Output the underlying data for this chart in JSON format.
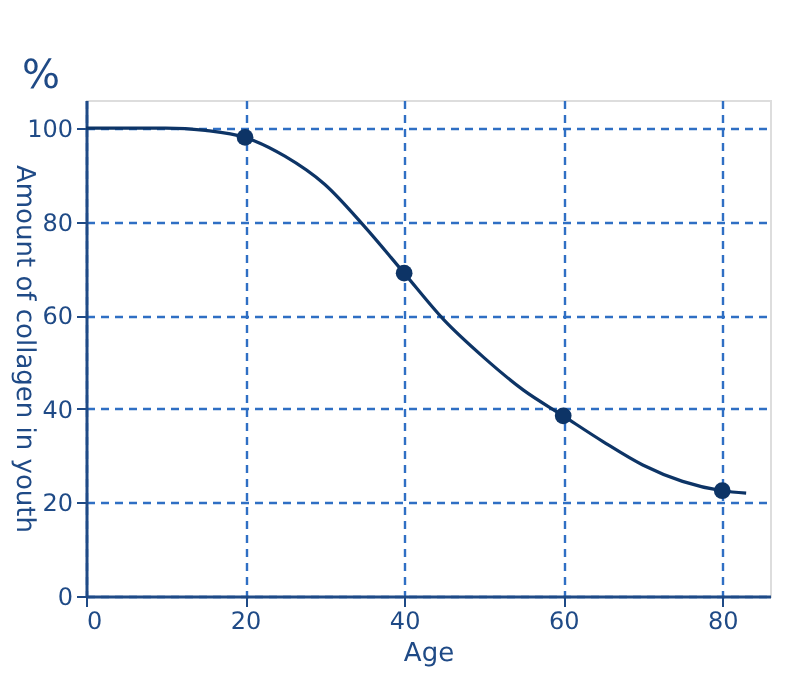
{
  "chart_data": {
    "type": "line",
    "xlabel": "Age",
    "ylabel": "Amount of collagen in youth",
    "annotations": [
      "%"
    ],
    "xlim": [
      0,
      86
    ],
    "ylim": [
      0,
      106
    ],
    "xticks": [
      0,
      20,
      40,
      60,
      80
    ],
    "yticks": [
      0,
      20,
      40,
      60,
      80,
      100
    ],
    "grid": true,
    "series": [
      {
        "color": "#0d3466",
        "marker": "none",
        "x": [
          0,
          10,
          15,
          20,
          25,
          30,
          35,
          40,
          45,
          50,
          55,
          60,
          65,
          70,
          75,
          80,
          83
        ],
        "values": [
          100,
          100,
          99.5,
          98,
          94,
          88,
          79,
          69,
          59,
          51,
          44,
          38.5,
          33,
          28,
          24.5,
          22.5,
          22
        ]
      },
      {
        "type": "scatter",
        "color": "#0d3466",
        "marker": "circle",
        "x": [
          20,
          40,
          60,
          80
        ],
        "values": [
          98,
          69,
          38.5,
          22.5
        ]
      }
    ]
  }
}
